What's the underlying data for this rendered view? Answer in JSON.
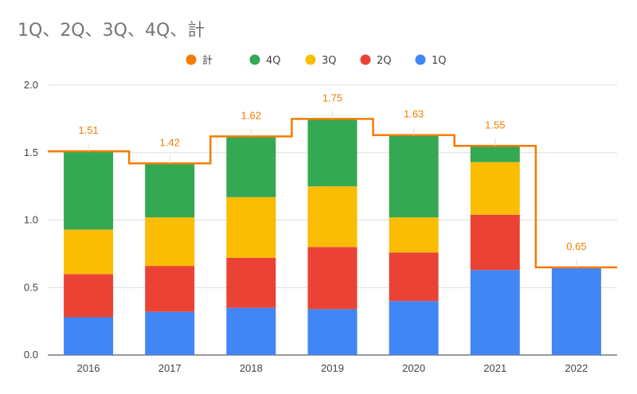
{
  "chart_data": {
    "type": "bar",
    "stacked": true,
    "title": "1Q、2Q、3Q、4Q、計",
    "categories": [
      "2016",
      "2017",
      "2018",
      "2019",
      "2020",
      "2021",
      "2022"
    ],
    "series": [
      {
        "name": "1Q",
        "color": "#4285f4",
        "values": [
          0.28,
          0.32,
          0.35,
          0.34,
          0.4,
          0.63,
          0.65
        ]
      },
      {
        "name": "2Q",
        "color": "#ea4335",
        "values": [
          0.32,
          0.34,
          0.37,
          0.46,
          0.36,
          0.41,
          0
        ]
      },
      {
        "name": "3Q",
        "color": "#fbbc04",
        "values": [
          0.33,
          0.36,
          0.45,
          0.45,
          0.26,
          0.39,
          0
        ]
      },
      {
        "name": "4Q",
        "color": "#34a853",
        "values": [
          0.58,
          0.4,
          0.45,
          0.5,
          0.61,
          0.12,
          0
        ]
      }
    ],
    "total_series": {
      "name": "計",
      "color": "#f57c00",
      "type": "stepped-line",
      "values": [
        1.51,
        1.42,
        1.62,
        1.75,
        1.63,
        1.55,
        0.65
      ]
    },
    "data_labels": [
      "1.51",
      "1.42",
      "1.62",
      "1.75",
      "1.63",
      "1.55",
      "0.65"
    ],
    "legend_order": [
      "計",
      "4Q",
      "3Q",
      "2Q",
      "1Q"
    ],
    "legend_position": "top",
    "ylim": [
      0,
      2
    ],
    "yticks": [
      "0.0",
      "0.5",
      "1.0",
      "1.5",
      "2.0"
    ],
    "ytick_values": [
      0,
      0.5,
      1.0,
      1.5,
      2.0
    ],
    "grid": true
  }
}
